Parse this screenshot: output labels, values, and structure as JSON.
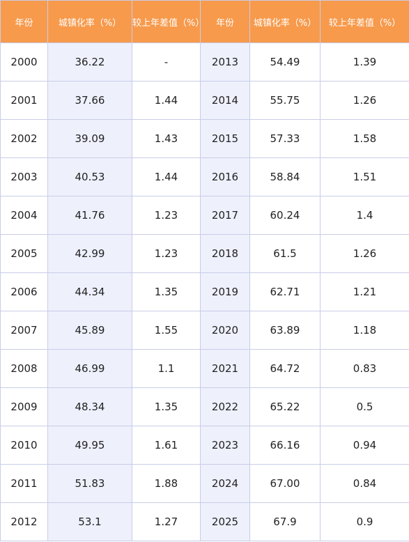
{
  "table": {
    "header": [
      "年份",
      "城镇化率（%）",
      "较上年差值（%）",
      "年份",
      "城镇化率（%）",
      "较上年差值（%）"
    ],
    "rows": [
      [
        "2000",
        "36.22",
        "-",
        "2013",
        "54.49",
        "1.39"
      ],
      [
        "2001",
        "37.66",
        "1.44",
        "2014",
        "55.75",
        "1.26"
      ],
      [
        "2002",
        "39.09",
        "1.43",
        "2015",
        "57.33",
        "1.58"
      ],
      [
        "2003",
        "40.53",
        "1.44",
        "2016",
        "58.84",
        "1.51"
      ],
      [
        "2004",
        "41.76",
        "1.23",
        "2017",
        "60.24",
        "1.4"
      ],
      [
        "2005",
        "42.99",
        "1.23",
        "2018",
        "61.5",
        "1.26"
      ],
      [
        "2006",
        "44.34",
        "1.35",
        "2019",
        "62.71",
        "1.21"
      ],
      [
        "2007",
        "45.89",
        "1.55",
        "2020",
        "63.89",
        "1.18"
      ],
      [
        "2008",
        "46.99",
        "1.1",
        "2021",
        "64.72",
        "0.83"
      ],
      [
        "2009",
        "48.34",
        "1.35",
        "2022",
        "65.22",
        "0.5"
      ],
      [
        "2010",
        "49.95",
        "1.61",
        "2023",
        "66.16",
        "0.94"
      ],
      [
        "2011",
        "51.83",
        "1.88",
        "2024",
        "67.00",
        "0.84"
      ],
      [
        "2012",
        "53.1",
        "1.27",
        "2025",
        "67.9",
        "0.9"
      ]
    ]
  }
}
